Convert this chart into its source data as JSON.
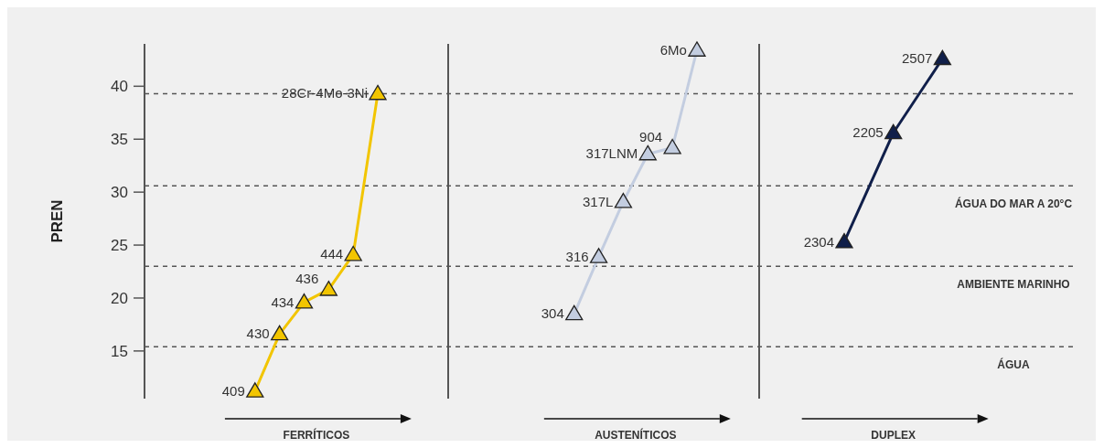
{
  "chart_data": {
    "type": "line",
    "ylabel": "PREN",
    "categories": [
      null,
      null,
      null,
      null,
      null,
      null,
      null,
      null,
      null,
      null,
      null,
      null,
      null,
      null,
      null,
      null,
      null,
      null,
      null,
      null,
      null,
      null,
      null,
      null,
      null,
      null,
      null,
      null,
      null,
      null,
      null,
      null,
      null,
      null,
      null,
      null,
      null,
      null
    ],
    "ylim": [
      10.5,
      44
    ],
    "yticks": [
      15,
      20,
      25,
      30,
      35,
      40
    ],
    "tick_labels": "y",
    "marker": "triangle",
    "line_style": "solid",
    "series": [
      {
        "color": "#f2c500",
        "values": [
          null,
          null,
          null,
          null,
          11.2,
          16.6,
          19.6,
          20.8,
          24.1,
          39.3,
          null,
          null,
          null,
          null,
          null,
          null,
          null,
          null,
          null,
          null,
          null,
          null,
          null,
          null,
          null,
          null,
          null,
          null,
          null,
          null,
          null,
          null,
          null,
          null,
          null,
          null,
          null,
          null
        ]
      },
      {
        "color": "#c3cde0",
        "values": [
          null,
          null,
          null,
          null,
          null,
          null,
          null,
          null,
          null,
          null,
          null,
          null,
          null,
          null,
          null,
          null,
          null,
          18.5,
          23.9,
          29.1,
          33.6,
          34.2,
          43.4,
          null,
          null,
          null,
          null,
          null,
          null,
          null,
          null,
          null,
          null,
          null,
          null,
          null,
          null,
          null
        ]
      },
      {
        "color": "#101f4a",
        "values": [
          null,
          null,
          null,
          null,
          null,
          null,
          null,
          null,
          null,
          null,
          null,
          null,
          null,
          null,
          null,
          null,
          null,
          null,
          null,
          null,
          null,
          null,
          null,
          null,
          null,
          null,
          null,
          null,
          25.3,
          null,
          35.6,
          null,
          42.6,
          null,
          null,
          null,
          null,
          null
        ]
      }
    ],
    "annotations": [
      "409",
      "430",
      "434",
      "436",
      "444",
      "28Cr-4Mo-3Ni",
      "304",
      "316",
      "317L",
      "317LNM",
      "904",
      "6Mo",
      "2304",
      "2205",
      "2507",
      "FERRÍTICOS",
      "AUSTENÍTICOS",
      "DUPLEX"
    ],
    "ref_lines": [
      {
        "axis": "y",
        "value": 39.3,
        "line_style": "dashed",
        "color": "#555555"
      },
      {
        "axis": "y",
        "value": 30.6,
        "label": "ÁGUA DO MAR A 20°C",
        "line_style": "dashed",
        "color": "#555555"
      },
      {
        "axis": "y",
        "value": 23.0,
        "label": "AMBIENTE MARINHO",
        "line_style": "dashed",
        "color": "#555555"
      },
      {
        "axis": "y",
        "value": 15.4,
        "label": "ÁGUA",
        "line_style": "dashed",
        "color": "#555555"
      }
    ]
  }
}
